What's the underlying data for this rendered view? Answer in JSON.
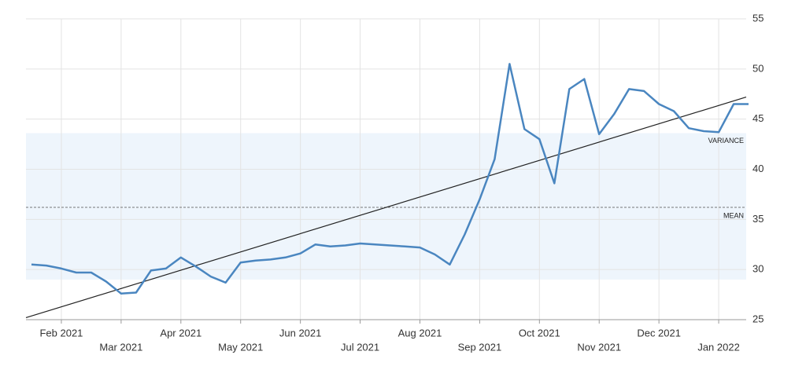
{
  "chart_data": {
    "type": "line",
    "categories": [
      null,
      null,
      "Feb 2021",
      null,
      null,
      null,
      "Mar 2021",
      null,
      null,
      null,
      "Apr 2021",
      null,
      null,
      null,
      "May 2021",
      null,
      null,
      null,
      "Jun 2021",
      null,
      null,
      null,
      "Jul 2021",
      null,
      null,
      null,
      "Aug 2021",
      null,
      null,
      null,
      "Sep 2021",
      null,
      null,
      null,
      "Oct 2021",
      null,
      null,
      null,
      "Nov 2021",
      null,
      null,
      null,
      "Dec 2021",
      null,
      null,
      null,
      "Jan 2022",
      null,
      null
    ],
    "series": [
      {
        "color": "#4a86c0",
        "values": [
          30.5,
          30.4,
          30.1,
          29.7,
          29.7,
          28.8,
          27.6,
          27.7,
          29.9,
          30.1,
          31.2,
          30.3,
          29.3,
          28.7,
          30.7,
          30.9,
          31.0,
          31.2,
          31.6,
          32.5,
          32.3,
          32.4,
          32.6,
          32.5,
          32.4,
          32.3,
          32.2,
          31.5,
          30.5,
          33.5,
          37.0,
          41.0,
          50.5,
          44.0,
          43.0,
          38.6,
          48.0,
          49.0,
          43.5,
          45.5,
          48.0,
          47.8,
          46.5,
          45.8,
          44.1,
          43.8,
          43.7,
          46.5,
          46.5
        ]
      }
    ],
    "ylim": [
      25,
      55
    ],
    "yticks": [
      25,
      30,
      35,
      40,
      45,
      50,
      55
    ],
    "grid": true,
    "trend": [
      25.2,
      47.2
    ],
    "mean": 36.2,
    "mean_label": "MEAN",
    "variance_band": [
      29.0,
      43.6
    ],
    "variance_label": "VARIANCE"
  }
}
